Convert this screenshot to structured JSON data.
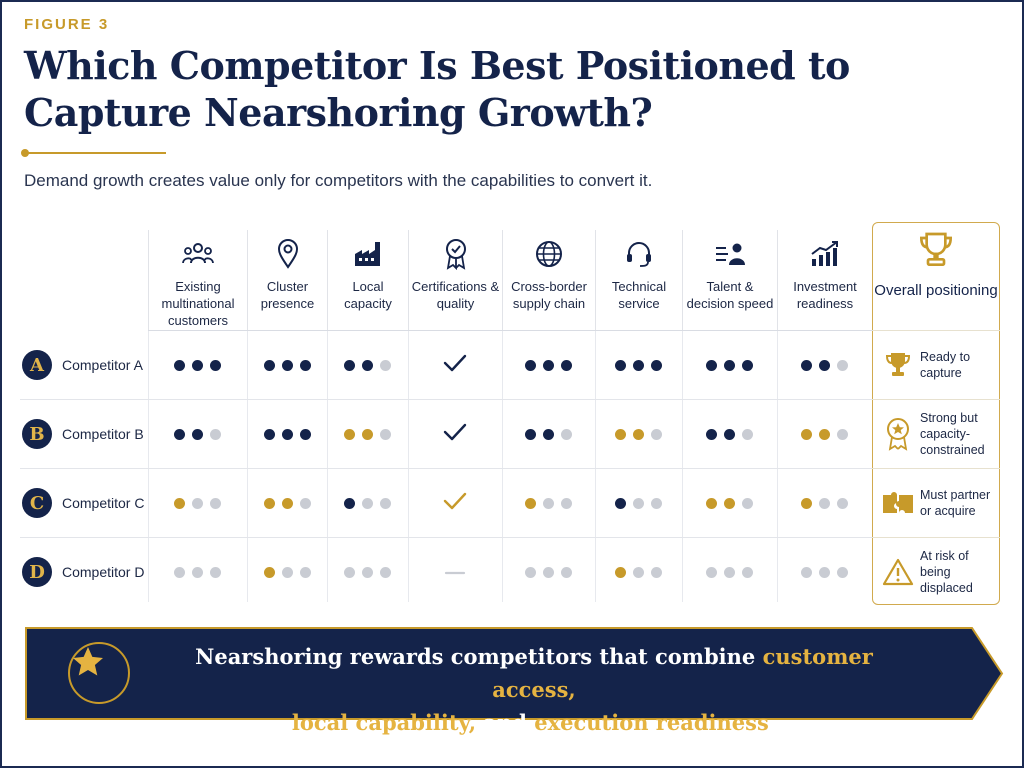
{
  "figure_label": "FIGURE 3",
  "title": "Which Competitor Is Best Positioned to Capture Nearshoring Growth?",
  "subtitle": "Demand growth creates value only for competitors with the capabilities to convert it.",
  "colors": {
    "navy": "#14234a",
    "gold": "#c79a2a",
    "grey": "#c9ccd3"
  },
  "columns": [
    {
      "label": "Existing multinational customers",
      "icon": "people-icon"
    },
    {
      "label": "Cluster presence",
      "icon": "location-pin-icon"
    },
    {
      "label": "Local capacity",
      "icon": "factory-icon"
    },
    {
      "label": "Certifications & quality",
      "icon": "certification-badge-icon"
    },
    {
      "label": "Cross-border supply chain",
      "icon": "globe-icon"
    },
    {
      "label": "Technical service",
      "icon": "headset-icon"
    },
    {
      "label": "Talent & decision speed",
      "icon": "talent-icon"
    },
    {
      "label": "Investment readiness",
      "icon": "growth-chart-icon"
    }
  ],
  "overall_header": "Overall positioning",
  "rows": [
    {
      "letter": "A",
      "name": "Competitor A",
      "cells": [
        {
          "type": "dots",
          "colors": [
            "navy",
            "navy",
            "navy"
          ]
        },
        {
          "type": "dots",
          "colors": [
            "navy",
            "navy",
            "navy"
          ]
        },
        {
          "type": "dots",
          "colors": [
            "navy",
            "navy",
            "grey"
          ]
        },
        {
          "type": "check",
          "color": "navy"
        },
        {
          "type": "dots",
          "colors": [
            "navy",
            "navy",
            "navy"
          ]
        },
        {
          "type": "dots",
          "colors": [
            "navy",
            "navy",
            "navy"
          ]
        },
        {
          "type": "dots",
          "colors": [
            "navy",
            "navy",
            "navy"
          ]
        },
        {
          "type": "dots",
          "colors": [
            "navy",
            "navy",
            "grey"
          ]
        }
      ],
      "overall": {
        "text": "Ready to capture",
        "icon": "trophy-icon"
      }
    },
    {
      "letter": "B",
      "name": "Competitor B",
      "cells": [
        {
          "type": "dots",
          "colors": [
            "navy",
            "navy",
            "grey"
          ]
        },
        {
          "type": "dots",
          "colors": [
            "navy",
            "navy",
            "navy"
          ]
        },
        {
          "type": "dots",
          "colors": [
            "gold",
            "gold",
            "grey"
          ]
        },
        {
          "type": "check",
          "color": "navy"
        },
        {
          "type": "dots",
          "colors": [
            "navy",
            "navy",
            "grey"
          ]
        },
        {
          "type": "dots",
          "colors": [
            "gold",
            "gold",
            "grey"
          ]
        },
        {
          "type": "dots",
          "colors": [
            "navy",
            "navy",
            "grey"
          ]
        },
        {
          "type": "dots",
          "colors": [
            "gold",
            "gold",
            "grey"
          ]
        }
      ],
      "overall": {
        "text": "Strong but capacity-constrained",
        "icon": "award-medal-icon"
      }
    },
    {
      "letter": "C",
      "name": "Competitor C",
      "cells": [
        {
          "type": "dots",
          "colors": [
            "gold",
            "grey",
            "grey"
          ]
        },
        {
          "type": "dots",
          "colors": [
            "gold",
            "gold",
            "grey"
          ]
        },
        {
          "type": "dots",
          "colors": [
            "navy",
            "grey",
            "grey"
          ]
        },
        {
          "type": "check",
          "color": "gold"
        },
        {
          "type": "dots",
          "colors": [
            "gold",
            "grey",
            "grey"
          ]
        },
        {
          "type": "dots",
          "colors": [
            "navy",
            "grey",
            "grey"
          ]
        },
        {
          "type": "dots",
          "colors": [
            "gold",
            "gold",
            "grey"
          ]
        },
        {
          "type": "dots",
          "colors": [
            "gold",
            "grey",
            "grey"
          ]
        }
      ],
      "overall": {
        "text": "Must partner or acquire",
        "icon": "puzzle-icon"
      }
    },
    {
      "letter": "D",
      "name": "Competitor D",
      "cells": [
        {
          "type": "dots",
          "colors": [
            "grey",
            "grey",
            "grey"
          ]
        },
        {
          "type": "dots",
          "colors": [
            "gold",
            "grey",
            "grey"
          ]
        },
        {
          "type": "dots",
          "colors": [
            "grey",
            "grey",
            "grey"
          ]
        },
        {
          "type": "dash",
          "color": "grey"
        },
        {
          "type": "dots",
          "colors": [
            "grey",
            "grey",
            "grey"
          ]
        },
        {
          "type": "dots",
          "colors": [
            "gold",
            "grey",
            "grey"
          ]
        },
        {
          "type": "dots",
          "colors": [
            "grey",
            "grey",
            "grey"
          ]
        },
        {
          "type": "dots",
          "colors": [
            "grey",
            "grey",
            "grey"
          ]
        }
      ],
      "overall": {
        "text": "At risk of being displaced",
        "icon": "warning-icon"
      }
    }
  ],
  "banner": {
    "icon": "star-icon",
    "parts": [
      {
        "text": "Nearshoring rewards competitors that combine ",
        "highlight": false
      },
      {
        "text": "customer access,",
        "highlight": true
      },
      {
        "text": " ",
        "highlight": false,
        "break": true
      },
      {
        "text": "local capability,",
        "highlight": true
      },
      {
        "text": " and ",
        "highlight": false
      },
      {
        "text": "execution readiness",
        "highlight": true
      },
      {
        "text": ".",
        "highlight": false
      }
    ]
  }
}
